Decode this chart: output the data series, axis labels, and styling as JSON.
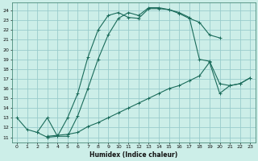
{
  "xlabel": "Humidex (Indice chaleur)",
  "bg_color": "#cceee8",
  "grid_color": "#99cccc",
  "line_color": "#1a6b5a",
  "xlim": [
    -0.5,
    23.5
  ],
  "ylim": [
    10.5,
    24.8
  ],
  "xticks": [
    0,
    1,
    2,
    3,
    4,
    5,
    6,
    7,
    8,
    9,
    10,
    11,
    12,
    13,
    14,
    15,
    16,
    17,
    18,
    19,
    20,
    21,
    22,
    23
  ],
  "yticks": [
    11,
    12,
    13,
    14,
    15,
    16,
    17,
    18,
    19,
    20,
    21,
    22,
    23,
    24
  ],
  "line1_x": [
    0,
    1,
    2,
    3,
    4,
    5,
    6,
    7,
    8,
    9,
    10,
    11,
    12,
    13,
    14,
    15,
    16,
    17,
    18,
    19,
    20
  ],
  "line1_y": [
    13.0,
    11.8,
    11.5,
    11.0,
    11.1,
    13.0,
    15.5,
    19.2,
    22.0,
    23.5,
    23.8,
    23.3,
    23.2,
    24.2,
    24.2,
    24.1,
    23.7,
    23.2,
    22.8,
    21.5,
    21.2
  ],
  "line2_x": [
    2,
    3,
    4,
    5,
    6,
    7,
    8,
    9,
    10,
    11,
    12,
    13,
    14,
    15,
    16,
    17,
    18,
    19,
    20,
    21,
    22,
    23
  ],
  "line2_y": [
    11.5,
    13.0,
    11.1,
    11.1,
    13.2,
    16.0,
    19.0,
    21.5,
    23.2,
    23.8,
    23.5,
    24.3,
    24.3,
    24.1,
    23.8,
    23.3,
    19.0,
    18.8,
    16.5,
    16.3,
    16.5,
    17.1
  ],
  "line3_x": [
    3,
    4,
    5,
    6,
    7,
    8,
    9,
    10,
    11,
    12,
    13,
    14,
    15,
    16,
    17,
    18,
    19,
    20,
    21,
    22,
    23
  ],
  "line3_y": [
    11.1,
    11.2,
    11.3,
    11.5,
    12.1,
    12.5,
    13.0,
    13.5,
    14.0,
    14.5,
    15.0,
    15.5,
    16.0,
    16.3,
    16.8,
    17.3,
    18.7,
    15.5,
    16.3,
    16.5,
    17.1
  ]
}
